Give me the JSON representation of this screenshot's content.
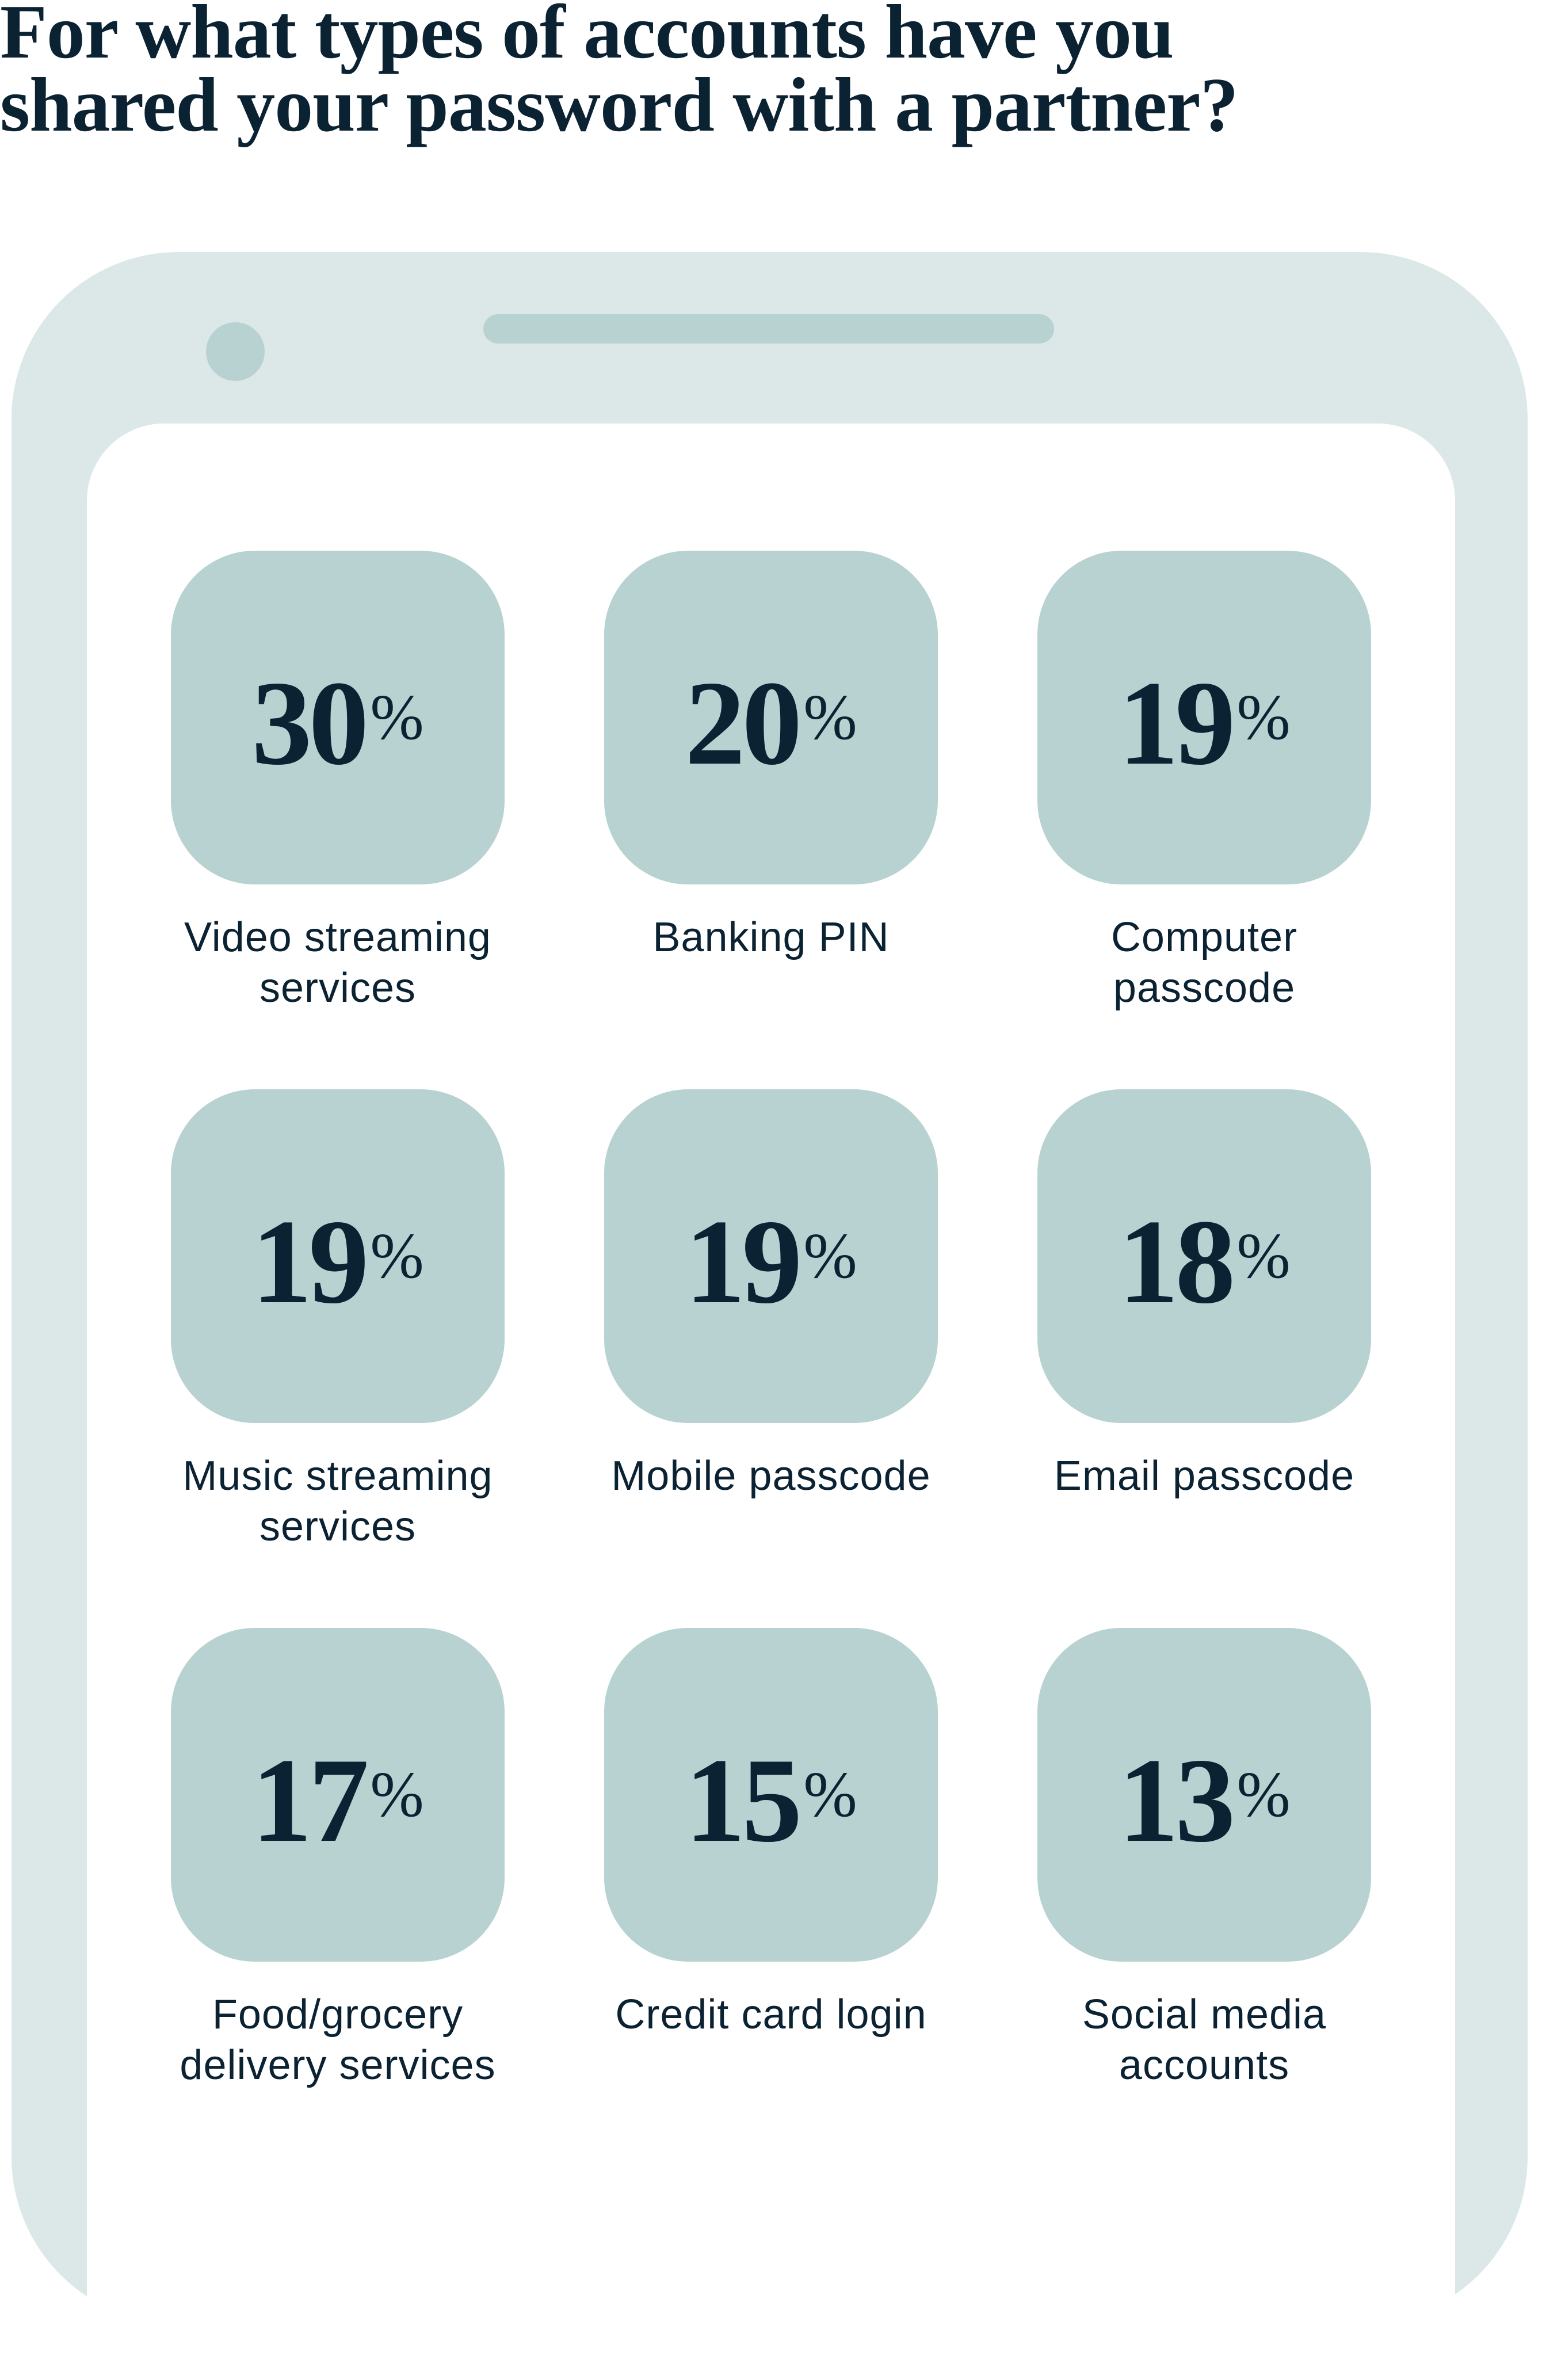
{
  "title": "For what types of accounts have you\nshared your password with a partner?",
  "colors": {
    "text": "#0b2233",
    "phone_frame": "#dbe8e7",
    "tile": "#b7d2d1",
    "screen": "#ffffff"
  },
  "percent_sign": "%",
  "items": [
    {
      "value": "30",
      "label": "Video streaming services"
    },
    {
      "value": "20",
      "label": "Banking PIN"
    },
    {
      "value": "19",
      "label": "Computer passcode"
    },
    {
      "value": "19",
      "label": "Music streaming services"
    },
    {
      "value": "19",
      "label": "Mobile passcode"
    },
    {
      "value": "18",
      "label": "Email passcode"
    },
    {
      "value": "17",
      "label": "Food/grocery delivery services"
    },
    {
      "value": "15",
      "label": "Credit card login"
    },
    {
      "value": "13",
      "label": "Social media accounts"
    }
  ]
}
